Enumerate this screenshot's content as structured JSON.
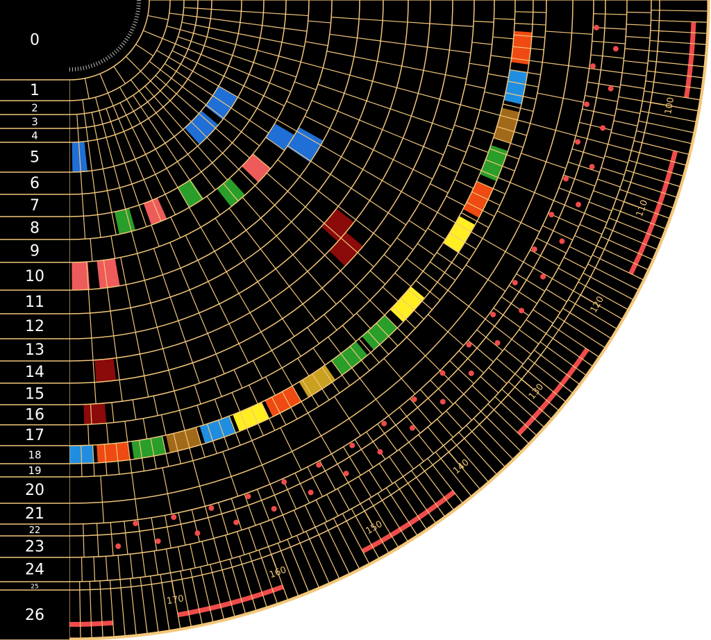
{
  "ring_labels": [
    "0",
    "1",
    "2",
    "3",
    "4",
    "5",
    "6",
    "7",
    "8",
    "9",
    "10",
    "11",
    "12",
    "13",
    "14",
    "15",
    "16",
    "17",
    "18",
    "19",
    "20",
    "21",
    "22",
    "23",
    "24",
    "25",
    "26"
  ],
  "degree_scale": [
    100,
    110,
    120,
    130,
    140,
    150,
    160,
    170
  ]
}
